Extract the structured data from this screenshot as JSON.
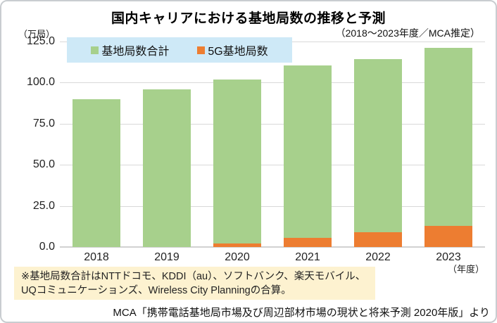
{
  "header": {
    "title": "国内キャリアにおける基地局数の推移と予測",
    "subtitle": "（2018〜2023年度／MCA推定）"
  },
  "footnote": {
    "line1": "※基地局数合計はNTTドコモ、KDDI（au）、ソフトバンク、楽天モバイル、",
    "line2": "UQコミュニケーションズ、Wireless City Planningの合算。"
  },
  "source": "MCA「携帯電話基地局市場及び周辺部材市場の現状と将来予測 2020年版」より",
  "colors": {
    "total_bar": "#a7d08c",
    "five_g_bar": "#ed7d31",
    "legend_background": "#cee9f7",
    "footnote_background": "#fdf2d0",
    "gridline": "#d9d9d9"
  },
  "chart_data": {
    "type": "bar",
    "title": "国内キャリアにおける基地局数の推移と予測",
    "subtitle": "（2018〜2023年度／MCA推定）",
    "ylabel": "（万局）",
    "xlabel": "（年度）",
    "ylim": [
      0,
      125
    ],
    "y_ticks": [
      "0.0",
      "25.0",
      "50.0",
      "75.0",
      "100.0",
      "125.0"
    ],
    "grid": true,
    "legend_position": "top-left",
    "categories": [
      "2018",
      "2019",
      "2020",
      "2021",
      "2022",
      "2023"
    ],
    "series": [
      {
        "name": "基地局数合計",
        "color": "#a7d08c",
        "values": [
          90,
          96,
          102,
          110.5,
          114.5,
          121
        ]
      },
      {
        "name": "5G基地局数",
        "color": "#ed7d31",
        "values": [
          0,
          0,
          2.3,
          5.5,
          9,
          13
        ]
      }
    ]
  }
}
